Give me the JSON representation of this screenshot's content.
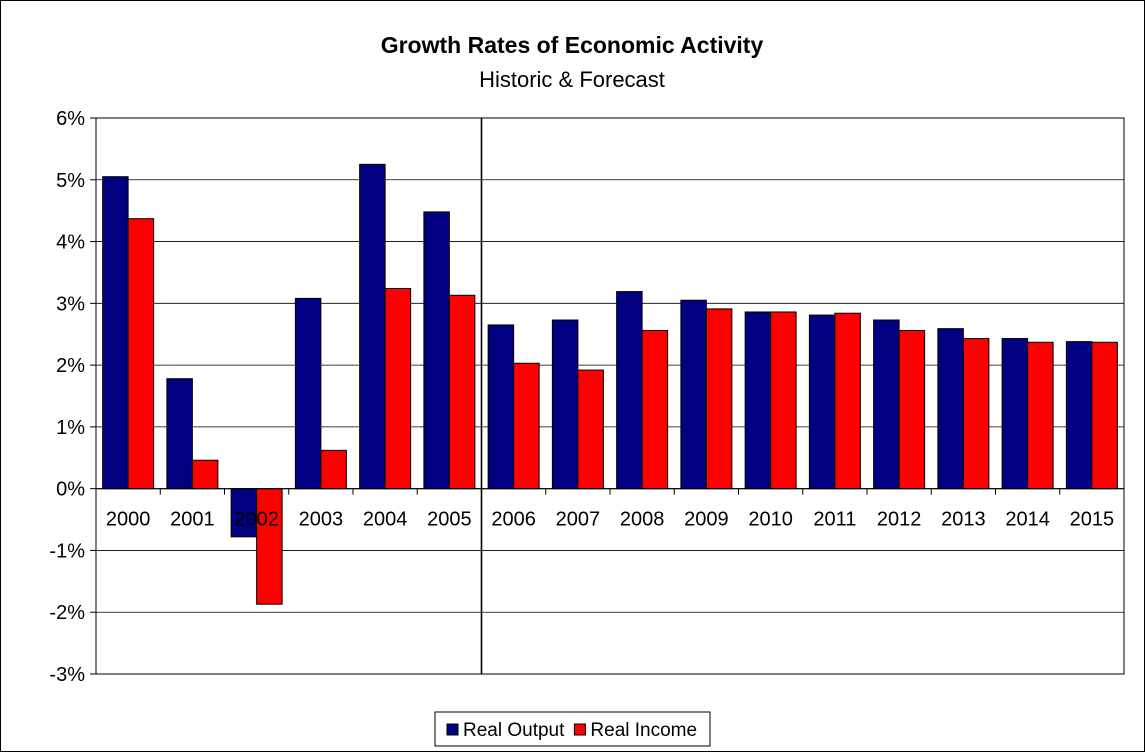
{
  "chart_data": {
    "type": "bar",
    "title": "Growth Rates of Economic Activity",
    "subtitle": "Historic & Forecast",
    "categories": [
      "2000",
      "2001",
      "2002",
      "2003",
      "2004",
      "2005",
      "2006",
      "2007",
      "2008",
      "2009",
      "2010",
      "2011",
      "2012",
      "2013",
      "2014",
      "2015"
    ],
    "series": [
      {
        "name": "Real Output",
        "color": "#000080",
        "values": [
          5.05,
          1.78,
          -0.78,
          3.08,
          5.25,
          4.48,
          2.65,
          2.73,
          3.19,
          3.05,
          2.86,
          2.81,
          2.73,
          2.59,
          2.43,
          2.38
        ]
      },
      {
        "name": "Real Income",
        "color": "#ff0000",
        "values": [
          4.37,
          0.46,
          -1.87,
          0.62,
          3.24,
          3.13,
          2.03,
          1.92,
          2.56,
          2.91,
          2.86,
          2.84,
          2.56,
          2.43,
          2.37,
          2.37
        ]
      }
    ],
    "ylim": [
      -3,
      6
    ],
    "yticks": [
      -3,
      -2,
      -1,
      0,
      1,
      2,
      3,
      4,
      5,
      6
    ],
    "ytick_labels": [
      "-3%",
      "-2%",
      "-1%",
      "0%",
      "1%",
      "2%",
      "3%",
      "4%",
      "5%",
      "6%"
    ],
    "forecast_divider_after": "2005",
    "grid": true,
    "legend_position": "bottom"
  }
}
